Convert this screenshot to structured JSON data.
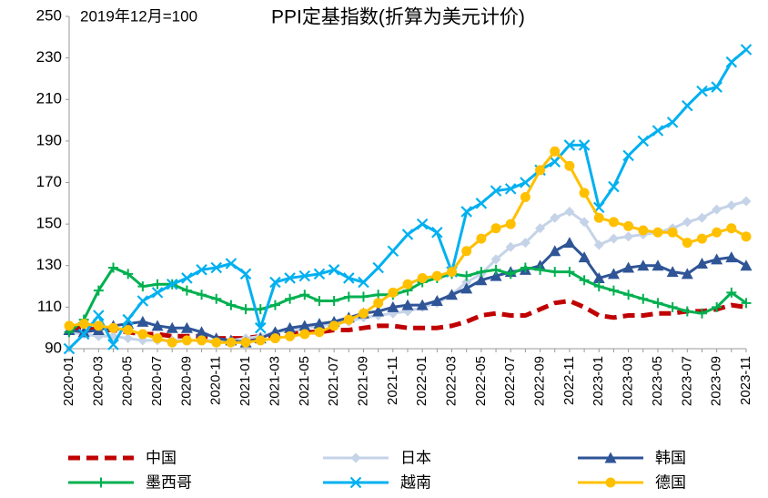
{
  "chart_data": {
    "type": "line",
    "title": "PPI定基指数(折算为美元计价)",
    "subtitle": "2019年12月=100",
    "categories": [
      "2020-01",
      null,
      "2020-03",
      null,
      "2020-05",
      null,
      "2020-07",
      null,
      "2020-09",
      null,
      "2020-11",
      null,
      "2021-01",
      null,
      "2021-03",
      null,
      "2021-05",
      null,
      "2021-07",
      null,
      "2021-09",
      null,
      "2021-11",
      null,
      "2022-01",
      null,
      "2022-03",
      null,
      "2022-05",
      null,
      "2022-07",
      null,
      "2022-09",
      null,
      "2022-11",
      null,
      "2023-01",
      null,
      "2023-03",
      null,
      "2023-05",
      null,
      "2023-07",
      null,
      "2023-09",
      null,
      "2023-11"
    ],
    "ylim": [
      90,
      250
    ],
    "yticks": [
      90,
      110,
      130,
      150,
      170,
      190,
      210,
      230,
      250
    ],
    "grid": false,
    "legend": "bottom",
    "series": [
      {
        "name": "中国",
        "color": "#c00000",
        "marker": "none",
        "dash": true,
        "values": [
          100,
          100,
          99,
          99,
          98,
          97,
          97,
          96,
          96,
          96,
          95,
          95,
          95,
          96,
          96,
          97,
          98,
          98,
          99,
          99,
          100,
          101,
          101,
          100,
          100,
          100,
          101,
          103,
          106,
          107,
          106,
          106,
          109,
          112,
          113,
          110,
          106,
          105,
          106,
          106,
          107,
          107,
          108,
          108,
          109,
          111,
          110
        ]
      },
      {
        "name": "日本",
        "color": "#c5d3e8",
        "marker": "diamond",
        "dash": false,
        "values": [
          98,
          97,
          96,
          96,
          95,
          94,
          94,
          94,
          94,
          94,
          94,
          94,
          95,
          96,
          98,
          99,
          100,
          101,
          102,
          103,
          105,
          106,
          107,
          108,
          110,
          112,
          116,
          122,
          126,
          133,
          139,
          141,
          148,
          153,
          156,
          151,
          140,
          143,
          144,
          145,
          146,
          148,
          151,
          153,
          157,
          159,
          161
        ]
      },
      {
        "name": "韩国",
        "color": "#2f5597",
        "marker": "triangle",
        "dash": false,
        "values": [
          99,
          98,
          99,
          101,
          102,
          103,
          101,
          100,
          100,
          98,
          95,
          94,
          93,
          95,
          98,
          100,
          101,
          102,
          103,
          105,
          107,
          108,
          110,
          111,
          111,
          113,
          116,
          119,
          123,
          125,
          127,
          128,
          130,
          137,
          141,
          134,
          124,
          126,
          129,
          130,
          130,
          127,
          126,
          131,
          133,
          134,
          130
        ]
      },
      {
        "name": "墨西哥",
        "color": "#00b050",
        "marker": "plus",
        "dash": false,
        "values": [
          98,
          104,
          118,
          129,
          126,
          120,
          121,
          121,
          118,
          116,
          114,
          111,
          109,
          109,
          111,
          114,
          116,
          113,
          113,
          115,
          115,
          116,
          116,
          118,
          122,
          124,
          126,
          125,
          127,
          128,
          126,
          129,
          128,
          127,
          127,
          123,
          120,
          118,
          116,
          114,
          112,
          110,
          108,
          107,
          110,
          117,
          112
        ]
      },
      {
        "name": "越南",
        "color": "#00b0f0",
        "marker": "x",
        "dash": false,
        "values": [
          90,
          97,
          106,
          92,
          104,
          113,
          117,
          121,
          124,
          128,
          129,
          131,
          126,
          100,
          122,
          124,
          125,
          126,
          128,
          124,
          122,
          129,
          137,
          145,
          150,
          146,
          127,
          156,
          160,
          166,
          167,
          170,
          176,
          180,
          188,
          188,
          158,
          168,
          183,
          190,
          195,
          199,
          207,
          214,
          216,
          228,
          234
        ]
      },
      {
        "name": "德国",
        "color": "#ffc000",
        "marker": "circle",
        "dash": false,
        "values": [
          101,
          102,
          101,
          100,
          99,
          97,
          95,
          93,
          94,
          94,
          93,
          93,
          93,
          94,
          95,
          96,
          97,
          98,
          101,
          104,
          107,
          112,
          117,
          121,
          124,
          125,
          127,
          137,
          143,
          148,
          150,
          163,
          176,
          185,
          178,
          165,
          153,
          151,
          149,
          147,
          146,
          146,
          141,
          143,
          146,
          148,
          144
        ]
      }
    ]
  }
}
